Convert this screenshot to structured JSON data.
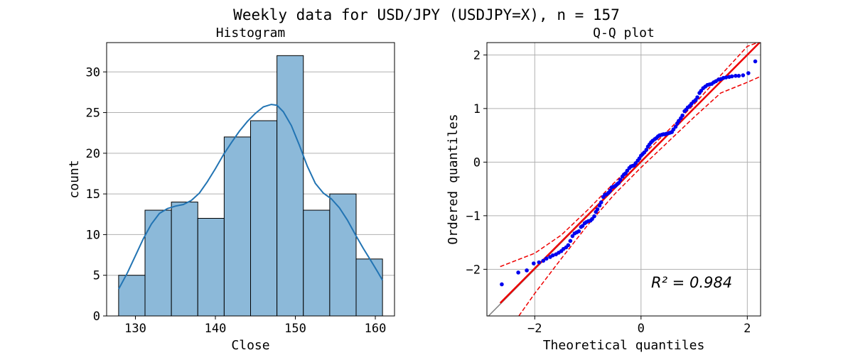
{
  "figure": {
    "suptitle": "Weekly data for USD/JPY (USDJPY=X), n = 157"
  },
  "chart_data": [
    {
      "type": "bar",
      "subtype": "histogram",
      "title": "Histogram",
      "xlabel": "Close",
      "ylabel": "count",
      "bin_edges": [
        127.9,
        131.2,
        134.5,
        137.8,
        141.1,
        144.4,
        147.7,
        151.0,
        154.3,
        157.6,
        160.9
      ],
      "values": [
        5,
        13,
        14,
        12,
        22,
        24,
        32,
        13,
        15,
        7
      ],
      "xlim": [
        126.4,
        162.4
      ],
      "ylim": [
        0,
        33.6
      ],
      "xticks": [
        130,
        140,
        150,
        160
      ],
      "yticks": [
        0,
        5,
        10,
        15,
        20,
        25,
        30
      ],
      "bar_color": "#8cb9d9",
      "kde": {
        "x": [
          127.9,
          129.0,
          130.0,
          131.0,
          132.0,
          133.0,
          134.0,
          135.0,
          136.0,
          137.0,
          138.0,
          139.0,
          140.0,
          141.0,
          142.0,
          143.0,
          144.0,
          145.0,
          146.0,
          147.0,
          147.7,
          148.5,
          149.5,
          150.5,
          151.5,
          152.5,
          153.5,
          154.5,
          155.5,
          156.5,
          157.5,
          158.5,
          159.5,
          160.3,
          160.9
        ],
        "y": [
          3.3,
          5.3,
          7.4,
          9.5,
          11.3,
          12.6,
          13.2,
          13.5,
          13.7,
          14.2,
          15.1,
          16.5,
          18.1,
          19.8,
          21.3,
          22.7,
          23.9,
          24.9,
          25.7,
          26.0,
          25.9,
          25.1,
          23.4,
          21.0,
          18.4,
          16.3,
          15.1,
          14.4,
          13.3,
          11.8,
          10.0,
          8.3,
          6.7,
          5.4,
          4.4
        ],
        "color": "#2274b3"
      },
      "grid": "y"
    },
    {
      "type": "scatter",
      "subtype": "qq-plot",
      "title": "Q-Q plot",
      "xlabel": "Theoretical quantiles",
      "ylabel": "Ordered quantiles",
      "xlim": [
        -2.9,
        2.25
      ],
      "ylim": [
        -2.87,
        2.23
      ],
      "xticks": [
        -2,
        0,
        2
      ],
      "yticks": [
        -2,
        -1,
        0,
        1,
        2
      ],
      "grid": "both",
      "annotation": "R² = 0.984",
      "point_color": "#0000ee",
      "fit_line": {
        "x": [
          -2.65,
          2.25
        ],
        "y": [
          -2.63,
          2.25
        ],
        "color": "#ee0000"
      },
      "reference_line": {
        "x": [
          -2.9,
          2.25
        ],
        "y": [
          -2.9,
          2.25
        ],
        "color": "#808080"
      },
      "confidence_band": {
        "color": "#ee0000",
        "upper": {
          "x": [
            -2.65,
            -2.0,
            -1.5,
            -1.0,
            -0.5,
            0.0,
            0.5,
            1.0,
            1.5,
            2.0,
            2.25
          ],
          "y": [
            -1.95,
            -1.7,
            -1.36,
            -0.89,
            -0.38,
            0.1,
            0.58,
            1.08,
            1.62,
            2.16,
            2.25
          ]
        },
        "lower": {
          "x": [
            -2.3,
            -2.0,
            -1.5,
            -1.0,
            -0.5,
            0.0,
            0.5,
            1.0,
            1.5,
            2.0,
            2.25
          ],
          "y": [
            -2.87,
            -2.45,
            -1.8,
            -1.17,
            -0.6,
            -0.1,
            0.37,
            0.84,
            1.29,
            1.49,
            1.6
          ]
        }
      },
      "points": {
        "x": [
          -2.62,
          -2.31,
          -2.15,
          -2.02,
          -1.92,
          -1.84,
          -1.78,
          -1.71,
          -1.66,
          -1.6,
          -1.55,
          -1.5,
          -1.46,
          -1.41,
          -1.37,
          -1.33,
          -1.29,
          -1.25,
          -1.21,
          -1.17,
          -1.13,
          -1.1,
          -1.06,
          -1.03,
          -0.99,
          -0.95,
          -0.92,
          -0.88,
          -0.85,
          -0.82,
          -0.78,
          -0.75,
          -0.71,
          -0.68,
          -0.65,
          -0.61,
          -0.58,
          -0.55,
          -0.52,
          -0.48,
          -0.45,
          -0.42,
          -0.39,
          -0.35,
          -0.32,
          -0.29,
          -0.26,
          -0.22,
          -0.19,
          -0.16,
          -0.13,
          -0.1,
          -0.06,
          -0.03,
          0.0,
          0.03,
          0.06,
          0.1,
          0.13,
          0.16,
          0.19,
          0.22,
          0.26,
          0.29,
          0.32,
          0.35,
          0.39,
          0.42,
          0.45,
          0.48,
          0.52,
          0.55,
          0.58,
          0.61,
          0.65,
          0.68,
          0.71,
          0.75,
          0.78,
          0.82,
          0.85,
          0.88,
          0.92,
          0.95,
          0.99,
          1.03,
          1.06,
          1.1,
          1.13,
          1.17,
          1.21,
          1.25,
          1.29,
          1.33,
          1.37,
          1.41,
          1.46,
          1.5,
          1.55,
          1.6,
          1.66,
          1.71,
          1.78,
          1.84,
          1.92,
          2.02,
          2.15
        ],
        "y": [
          -2.28,
          -2.06,
          -2.02,
          -1.89,
          -1.87,
          -1.84,
          -1.8,
          -1.77,
          -1.74,
          -1.72,
          -1.69,
          -1.66,
          -1.62,
          -1.59,
          -1.55,
          -1.47,
          -1.38,
          -1.33,
          -1.31,
          -1.29,
          -1.21,
          -1.19,
          -1.14,
          -1.12,
          -1.1,
          -1.09,
          -1.06,
          -1.01,
          -0.93,
          -0.88,
          -0.81,
          -0.75,
          -0.65,
          -0.61,
          -0.6,
          -0.57,
          -0.53,
          -0.47,
          -0.46,
          -0.44,
          -0.41,
          -0.39,
          -0.33,
          -0.27,
          -0.23,
          -0.21,
          -0.16,
          -0.11,
          -0.08,
          -0.07,
          -0.06,
          -0.02,
          0.03,
          0.07,
          0.12,
          0.15,
          0.18,
          0.23,
          0.29,
          0.33,
          0.37,
          0.4,
          0.43,
          0.45,
          0.48,
          0.5,
          0.51,
          0.52,
          0.52,
          0.53,
          0.54,
          0.55,
          0.56,
          0.61,
          0.66,
          0.72,
          0.77,
          0.82,
          0.87,
          0.95,
          0.98,
          1.02,
          1.05,
          1.09,
          1.13,
          1.16,
          1.21,
          1.29,
          1.33,
          1.38,
          1.41,
          1.44,
          1.45,
          1.46,
          1.49,
          1.51,
          1.54,
          1.55,
          1.57,
          1.58,
          1.59,
          1.6,
          1.61,
          1.61,
          1.62,
          1.66,
          1.88
        ]
      }
    }
  ]
}
